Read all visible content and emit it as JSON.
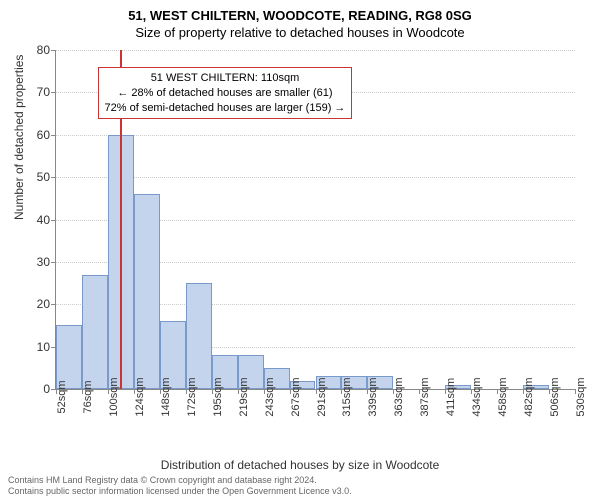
{
  "titles": {
    "main": "51, WEST CHILTERN, WOODCOTE, READING, RG8 0SG",
    "sub": "Size of property relative to detached houses in Woodcote"
  },
  "chart": {
    "type": "histogram",
    "background_color": "#ffffff",
    "grid_color": "#cccccc",
    "axis_color": "#888888",
    "bar_fill": "#c5d4ed",
    "bar_border": "#7a9acc",
    "marker_color": "#cc3333",
    "ylabel": "Number of detached properties",
    "xlabel": "Distribution of detached houses by size in Woodcote",
    "ylim": [
      0,
      80
    ],
    "ytick_step": 10,
    "yticks": [
      0,
      10,
      20,
      30,
      40,
      50,
      60,
      70,
      80
    ],
    "xticks": [
      "52sqm",
      "76sqm",
      "100sqm",
      "124sqm",
      "148sqm",
      "172sqm",
      "195sqm",
      "219sqm",
      "243sqm",
      "267sqm",
      "291sqm",
      "315sqm",
      "339sqm",
      "363sqm",
      "387sqm",
      "411sqm",
      "434sqm",
      "458sqm",
      "482sqm",
      "506sqm",
      "530sqm"
    ],
    "bars": [
      15,
      27,
      60,
      46,
      16,
      25,
      8,
      8,
      5,
      2,
      3,
      3,
      3,
      0,
      0,
      1,
      0,
      0,
      1,
      0
    ],
    "marker_x_index": 2.45,
    "bar_width_ratio": 1.0,
    "label_fontsize": 12,
    "tick_fontsize": 11
  },
  "info_box": {
    "line1": "51 WEST CHILTERN: 110sqm",
    "line2": "← 28% of detached houses are smaller (61)",
    "line3": "72% of semi-detached houses are larger (159) →",
    "border_color": "#cc3333",
    "top_pct": 5,
    "left_pct": 8
  },
  "footer": {
    "line1": "Contains HM Land Registry data © Crown copyright and database right 2024.",
    "line2": "Contains public sector information licensed under the Open Government Licence v3.0."
  }
}
